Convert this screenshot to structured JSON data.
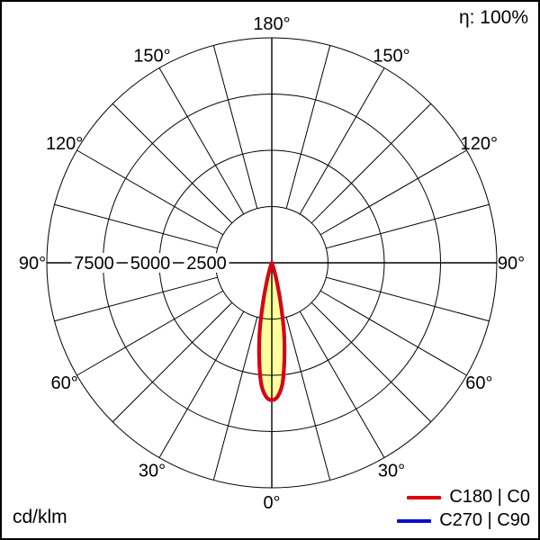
{
  "header": {
    "efficiency": "η: 100%"
  },
  "footer": {
    "unit": "cd/klm"
  },
  "legend": {
    "items": [
      {
        "label": "C180 | C0",
        "color": "#dd000f"
      },
      {
        "label": "C270 | C90",
        "color": "#0b0bcf"
      }
    ]
  },
  "chart_data": {
    "type": "polar-photometric",
    "unit": "cd/klm",
    "efficiency_percent": 100,
    "radial_axis": {
      "ticks": [
        2500,
        5000,
        7500,
        10000
      ],
      "tick_labels": [
        "2500",
        "5000",
        "7500"
      ],
      "max": 10000
    },
    "angle_axis": {
      "spoke_step_deg": 15,
      "label_step_deg": 30,
      "labels": [
        "0°",
        "30°",
        "60°",
        "90°",
        "120°",
        "150°",
        "180°"
      ],
      "zero_direction": "down"
    },
    "series": [
      {
        "name": "C180 | C0",
        "color": "#dd000f",
        "fill_color": "#ffff9e",
        "gamma_deg": [
          0,
          2.5,
          5,
          7.5,
          10,
          12.5,
          15,
          17.5,
          20,
          22.5,
          25,
          27.5,
          30
        ],
        "values_cd_klm": [
          6100,
          5950,
          5400,
          4300,
          3100,
          1800,
          850,
          300,
          80,
          0,
          0,
          0,
          0
        ],
        "symmetric": true
      },
      {
        "name": "C270 | C90",
        "color": "#0b0bcf",
        "gamma_deg": [
          0,
          2.5,
          5,
          7.5,
          10,
          12.5,
          15,
          17.5,
          20,
          22.5,
          25,
          27.5,
          30
        ],
        "values_cd_klm": [
          6100,
          5950,
          5400,
          4300,
          3100,
          1800,
          850,
          300,
          80,
          0,
          0,
          0,
          0
        ],
        "symmetric": true,
        "coincides_with": "C180 | C0"
      }
    ]
  }
}
